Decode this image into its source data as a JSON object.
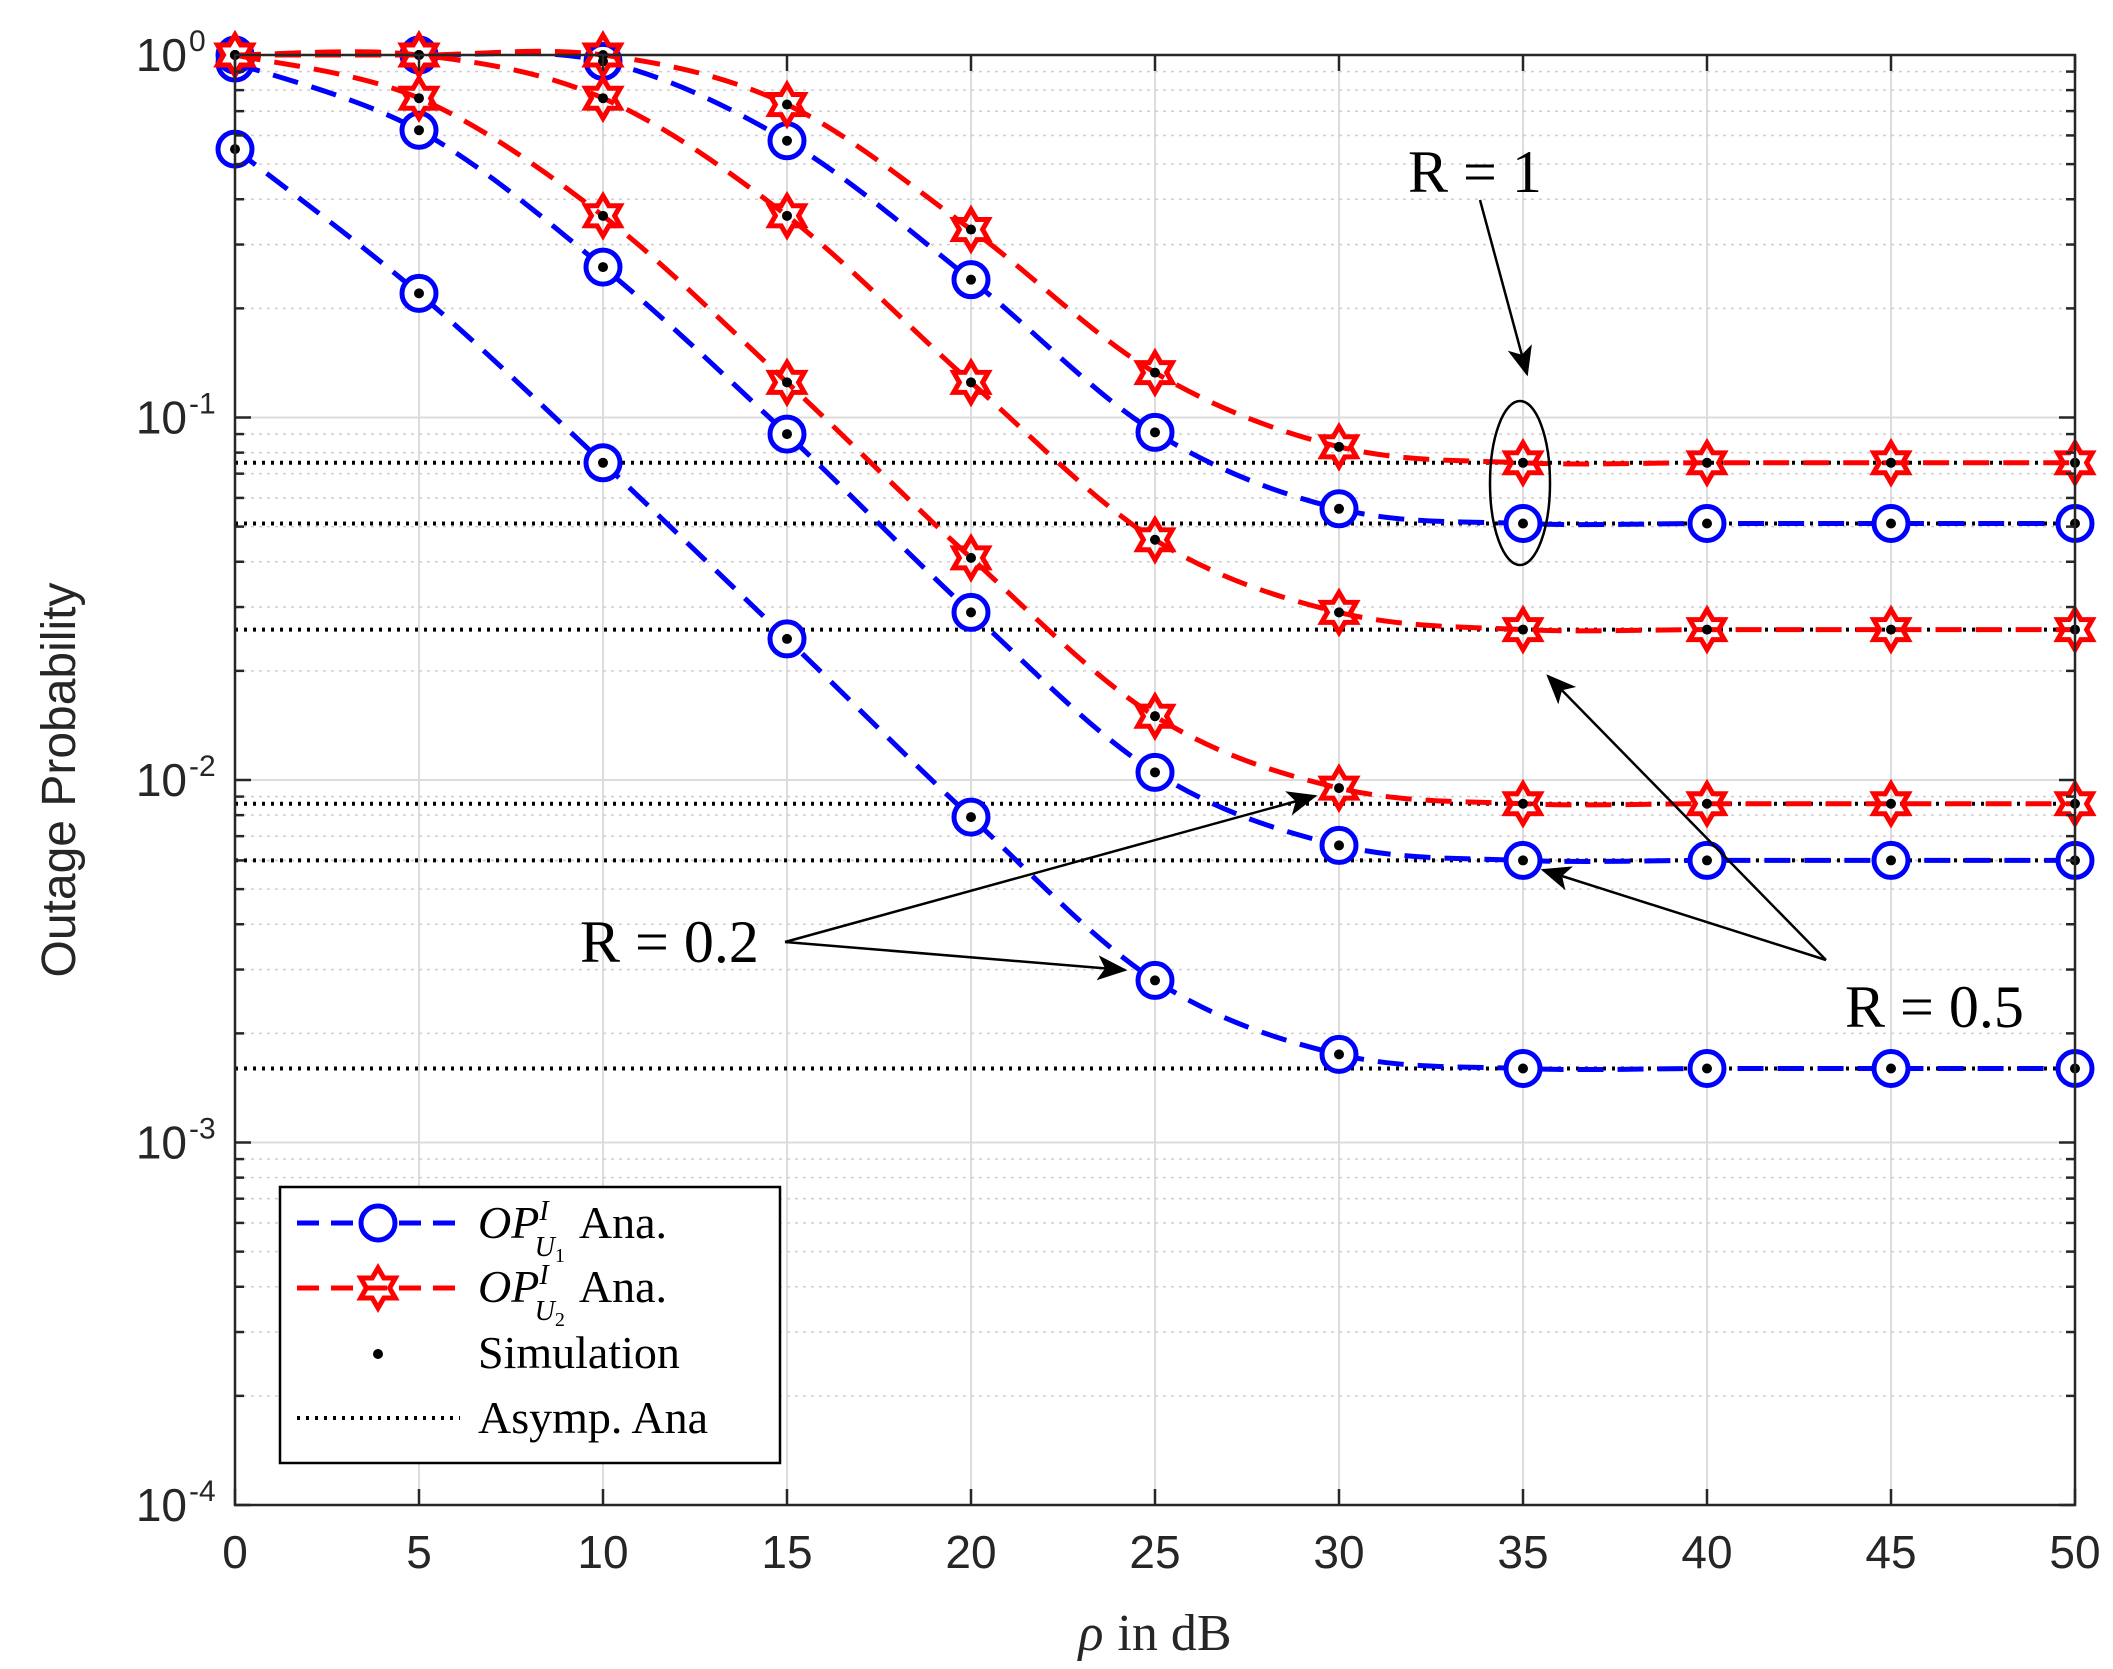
{
  "chart_data": {
    "type": "line",
    "yscale": "log",
    "xlabel": "in dB",
    "xlabel_symbol": "ρ",
    "ylabel": "Outage Probability",
    "xlim": [
      0,
      50
    ],
    "ylim": [
      0.0001,
      1
    ],
    "grid": true,
    "x_ticks": [
      0,
      5,
      10,
      15,
      20,
      25,
      30,
      35,
      40,
      45,
      50
    ],
    "y_ticks": [
      {
        "value": 1,
        "base": "10",
        "exp": "0"
      },
      {
        "value": 0.1,
        "base": "10",
        "exp": "-1"
      },
      {
        "value": 0.01,
        "base": "10",
        "exp": "-2"
      },
      {
        "value": 0.001,
        "base": "10",
        "exp": "-3"
      },
      {
        "value": 0.0001,
        "base": "10",
        "exp": "-4"
      }
    ],
    "x": [
      0,
      5,
      10,
      15,
      20,
      25,
      30,
      35,
      40,
      45,
      50
    ],
    "series": [
      {
        "name": "OP_U1 Ana. R=0.2",
        "group": "U1",
        "rate": 0.2,
        "color": "#0000ff",
        "marker": "circle",
        "values": [
          0.55,
          0.22,
          0.075,
          0.0245,
          0.0079,
          0.0028,
          0.00175,
          0.0016,
          0.0016,
          0.0016,
          0.0016
        ]
      },
      {
        "name": "OP_U1 Ana. R=0.5",
        "group": "U1",
        "rate": 0.5,
        "color": "#0000ff",
        "marker": "circle",
        "values": [
          0.95,
          0.62,
          0.26,
          0.09,
          0.029,
          0.0105,
          0.0066,
          0.006,
          0.006,
          0.006,
          0.006
        ]
      },
      {
        "name": "OP_U1 Ana. R=1",
        "group": "U1",
        "rate": 1,
        "color": "#0000ff",
        "marker": "circle",
        "values": [
          1.0,
          1.0,
          0.96,
          0.58,
          0.24,
          0.091,
          0.056,
          0.051,
          0.051,
          0.051,
          0.051
        ]
      },
      {
        "name": "OP_U2 Ana. R=0.2",
        "group": "U2",
        "rate": 0.2,
        "color": "#ff0000",
        "marker": "hexagram",
        "values": [
          1.0,
          0.76,
          0.36,
          0.125,
          0.041,
          0.015,
          0.0095,
          0.0086,
          0.0086,
          0.0086,
          0.0086
        ]
      },
      {
        "name": "OP_U2 Ana. R=0.5",
        "group": "U2",
        "rate": 0.5,
        "color": "#ff0000",
        "marker": "hexagram",
        "values": [
          1.0,
          1.0,
          0.76,
          0.36,
          0.125,
          0.046,
          0.029,
          0.026,
          0.026,
          0.026,
          0.026
        ]
      },
      {
        "name": "OP_U2 Ana. R=1",
        "group": "U2",
        "rate": 1,
        "color": "#ff0000",
        "marker": "hexagram",
        "values": [
          1.0,
          1.0,
          1.0,
          0.73,
          0.33,
          0.133,
          0.083,
          0.075,
          0.075,
          0.075,
          0.075
        ]
      }
    ],
    "asymptotes": [
      0.075,
      0.051,
      0.026,
      0.0086,
      0.006,
      0.0016
    ],
    "legend": {
      "location": "bottom-left",
      "entries": [
        {
          "key": "u1",
          "math_main": "OP",
          "math_sup": "I",
          "math_sub": "U",
          "math_subsub": "1",
          "text": "Ana."
        },
        {
          "key": "u2",
          "math_main": "OP",
          "math_sup": "I",
          "math_sub": "U",
          "math_subsub": "2",
          "text": "Ana."
        },
        {
          "key": "sim",
          "text": "Simulation"
        },
        {
          "key": "asym",
          "text": "Asymp.  Ana"
        }
      ]
    },
    "annotations": [
      {
        "id": "r1",
        "text": "R = 1"
      },
      {
        "id": "r05",
        "text": "R = 0.5"
      },
      {
        "id": "r02",
        "text": "R = 0.2"
      }
    ]
  }
}
